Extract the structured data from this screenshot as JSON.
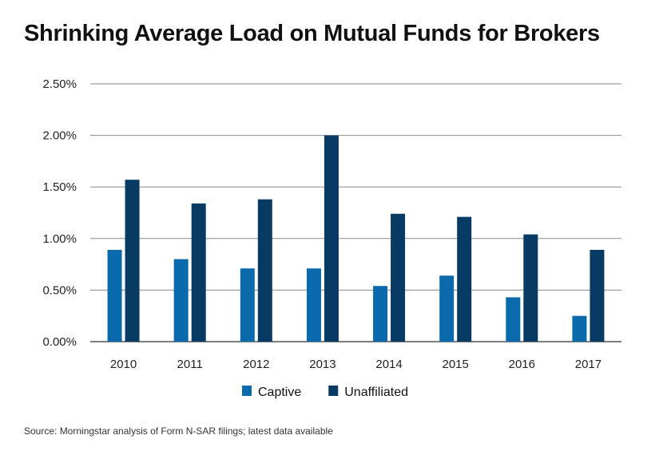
{
  "chart_data": {
    "type": "bar",
    "title": "Shrinking Average Load on Mutual Funds for Brokers",
    "xlabel": "",
    "ylabel": "",
    "categories": [
      "2010",
      "2011",
      "2012",
      "2013",
      "2014",
      "2015",
      "2016",
      "2017"
    ],
    "series": [
      {
        "name": "Captive",
        "color": "#0a6aab",
        "values": [
          0.89,
          0.8,
          0.71,
          0.71,
          0.54,
          0.64,
          0.43,
          0.25
        ]
      },
      {
        "name": "Unaffiliated",
        "color": "#073b63",
        "values": [
          1.57,
          1.34,
          1.38,
          2.0,
          1.24,
          1.21,
          1.04,
          0.89
        ]
      }
    ],
    "ylim": [
      0,
      2.5
    ],
    "yticks": [
      0,
      0.5,
      1.0,
      1.5,
      2.0,
      2.5
    ],
    "ytick_labels": [
      "0.00%",
      "0.50%",
      "1.00%",
      "1.50%",
      "2.00%",
      "2.50%"
    ],
    "grid": true,
    "legend_position": "bottom-center"
  },
  "source_note": "Source: Morningstar analysis of Form N-SAR filings; latest data available"
}
